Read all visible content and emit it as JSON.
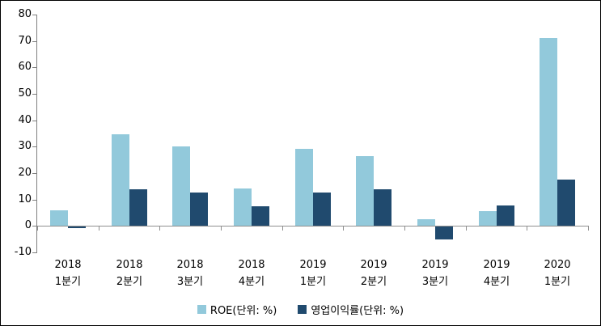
{
  "chart_data": {
    "type": "bar",
    "title": "",
    "xlabel": "",
    "ylabel": "",
    "categories": [
      [
        "2018",
        "1분기"
      ],
      [
        "2018",
        "2분기"
      ],
      [
        "2018",
        "3분기"
      ],
      [
        "2018",
        "4분기"
      ],
      [
        "2019",
        "1분기"
      ],
      [
        "2019",
        "2분기"
      ],
      [
        "2019",
        "3분기"
      ],
      [
        "2019",
        "4분기"
      ],
      [
        "2020",
        "1분기"
      ]
    ],
    "series": [
      {
        "name": "ROE(단위: %)",
        "color": "#92C9DB",
        "values": [
          5.8,
          34.8,
          30.0,
          14.1,
          29.1,
          26.3,
          2.5,
          5.5,
          71.0
        ]
      },
      {
        "name": "영업이익률(단위: %)",
        "color": "#204A6E",
        "values": [
          -0.5,
          13.8,
          12.6,
          7.3,
          12.7,
          13.9,
          -4.8,
          7.7,
          17.4
        ]
      }
    ],
    "ylim": [
      -10,
      80
    ],
    "yticks": [
      80,
      70,
      60,
      50,
      40,
      30,
      20,
      10,
      0,
      -10
    ],
    "grid": false,
    "legend_position": "bottom"
  },
  "style": {
    "y_axis_color": "#7f7f7f",
    "x_axis_color": "#8f8f8f",
    "text_color": "#000000",
    "background": "#ffffff"
  }
}
